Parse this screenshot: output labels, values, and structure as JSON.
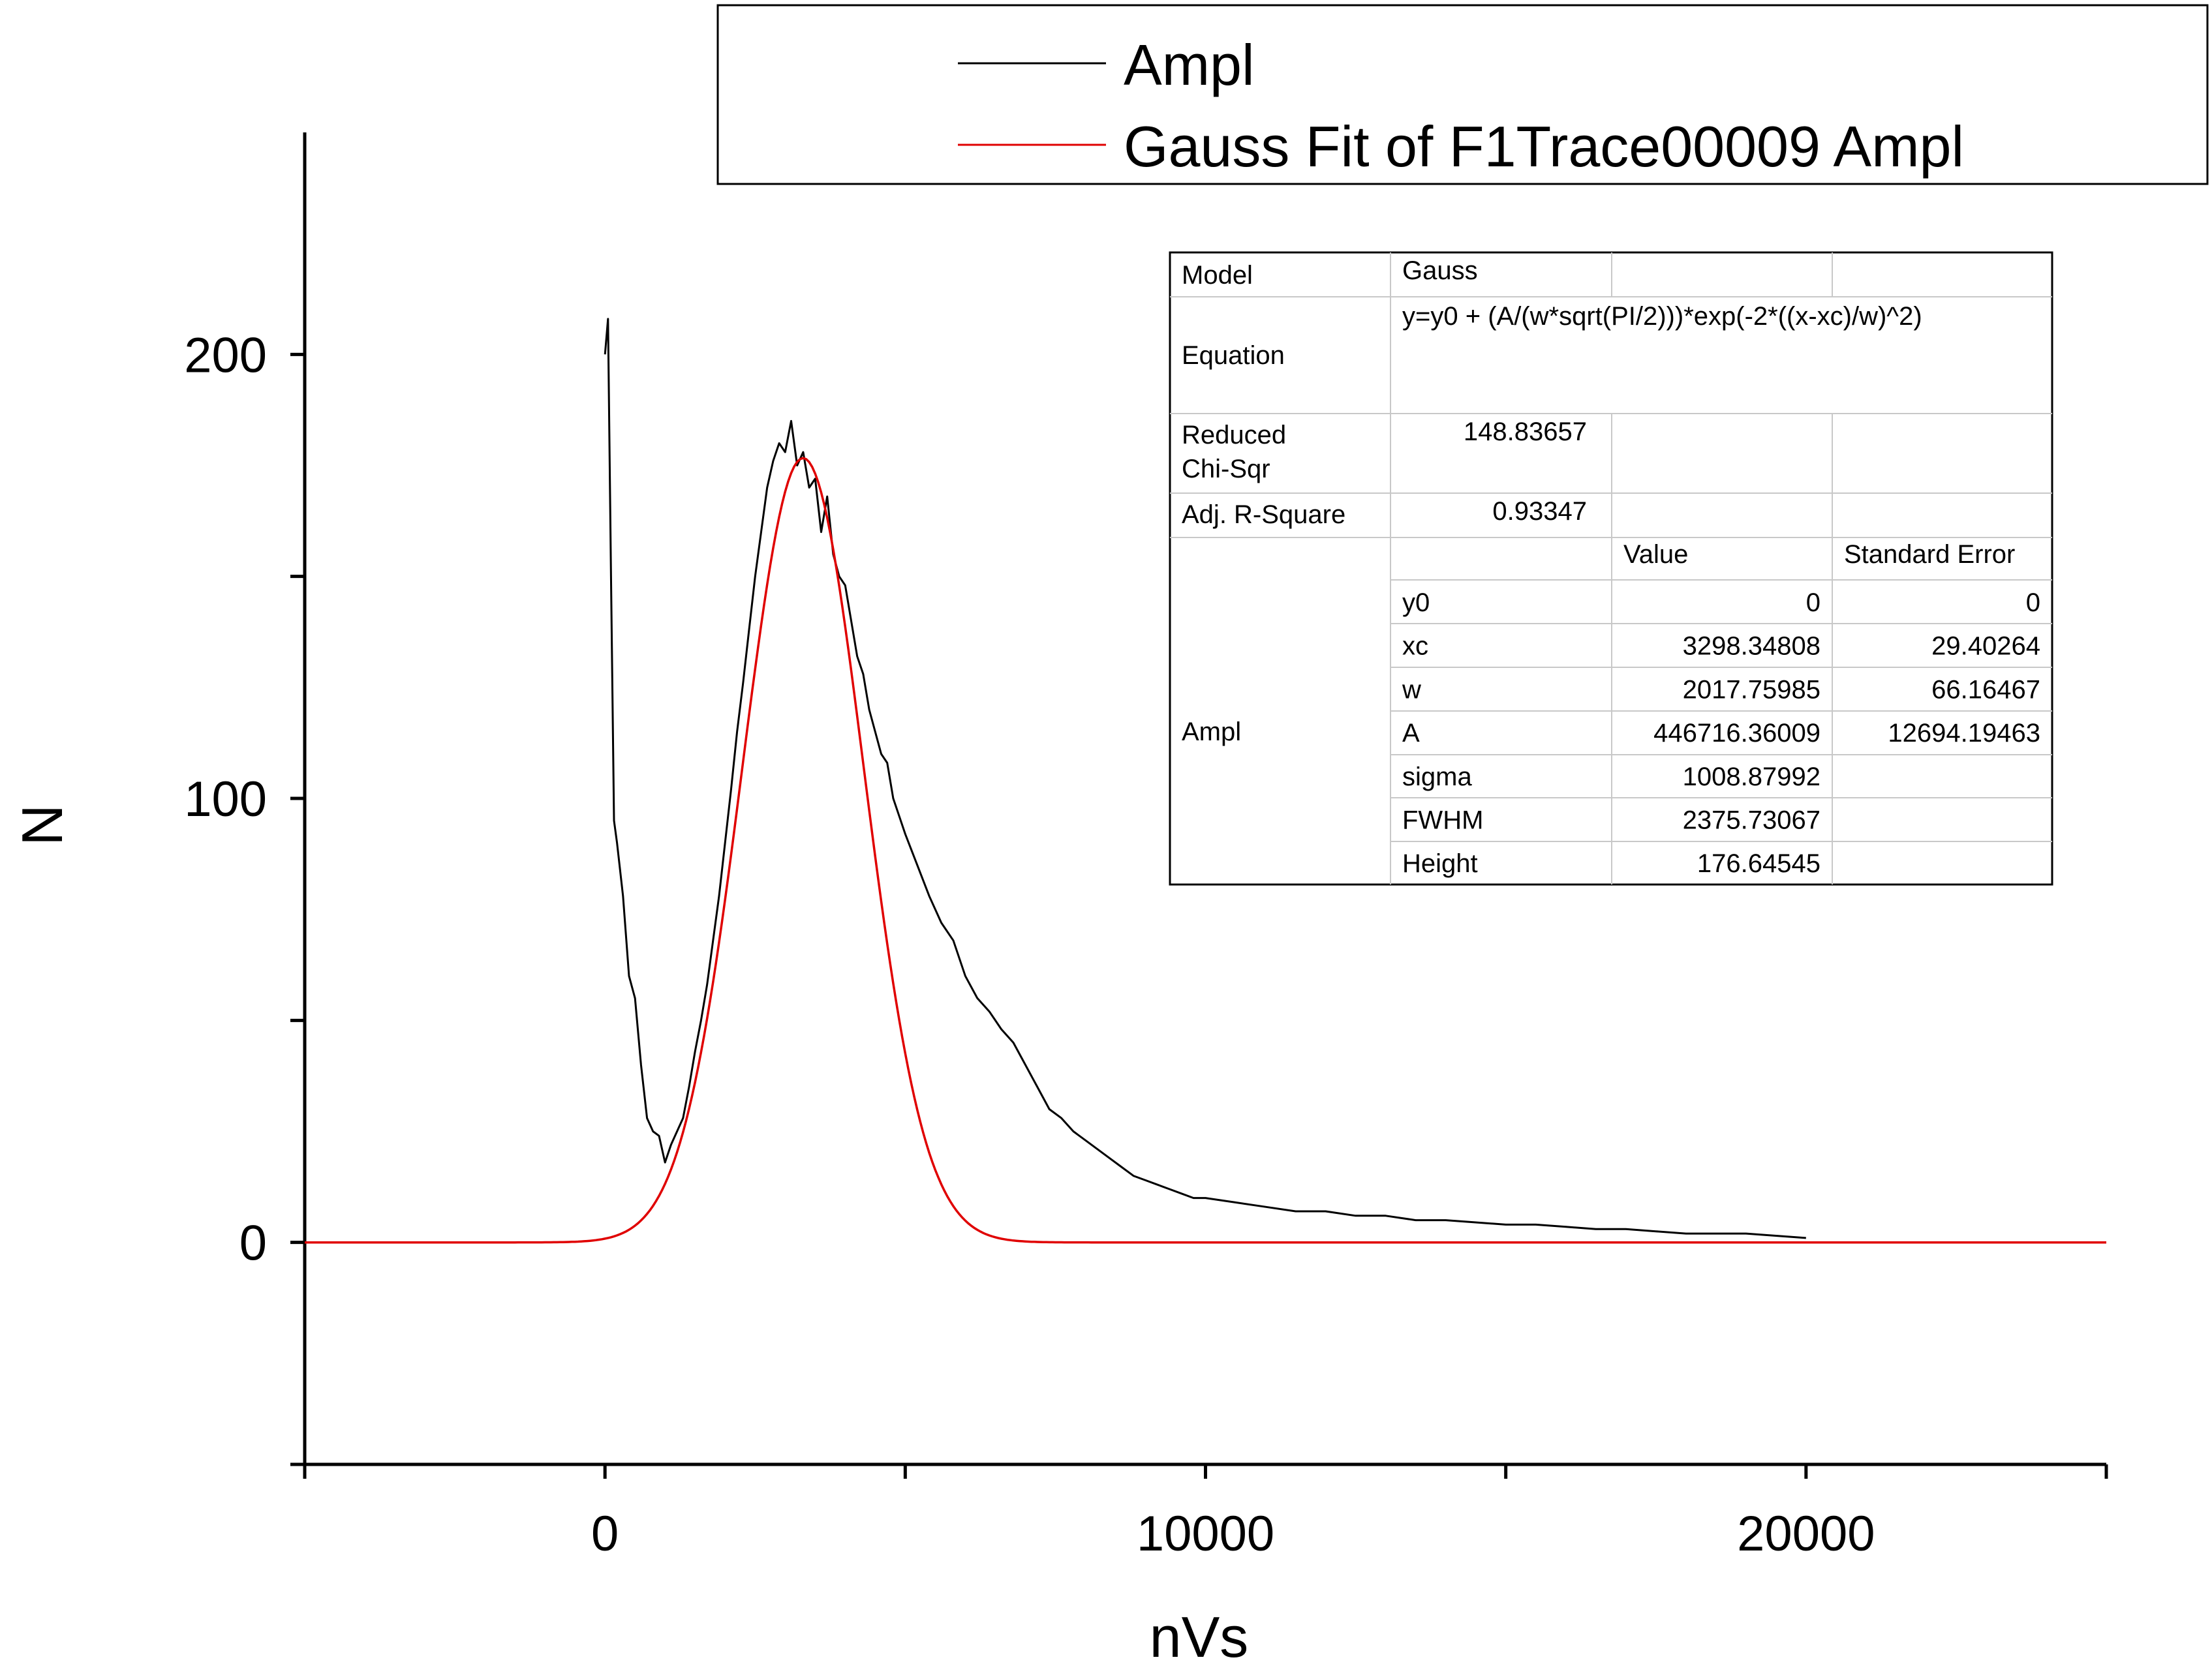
{
  "chart_data": {
    "type": "line",
    "xlabel": "nVs",
    "ylabel": "N",
    "xlim": [
      -5000,
      25000
    ],
    "ylim": [
      -50,
      250
    ],
    "x_ticks": [
      0,
      10000,
      20000
    ],
    "x_tick_labels": [
      "0",
      "10000",
      "20000"
    ],
    "x_minor_ticks": [
      -5000,
      5000,
      15000,
      25000
    ],
    "y_ticks": [
      0,
      100,
      200
    ],
    "y_tick_labels": [
      "0",
      "100",
      "200"
    ],
    "y_minor_ticks": [
      -50,
      50,
      150
    ],
    "grid": false,
    "legend": {
      "placement": "top-right",
      "entries": [
        {
          "label": "Ampl",
          "color": "#000000"
        },
        {
          "label": "Gauss Fit of F1Trace00009 Ampl",
          "color": "#e00000"
        }
      ]
    },
    "series": [
      {
        "name": "Ampl",
        "color": "#000000",
        "points": [
          [
            0,
            200
          ],
          [
            50,
            208
          ],
          [
            100,
            150
          ],
          [
            150,
            95
          ],
          [
            200,
            90
          ],
          [
            300,
            78
          ],
          [
            400,
            60
          ],
          [
            500,
            55
          ],
          [
            600,
            40
          ],
          [
            700,
            28
          ],
          [
            800,
            25
          ],
          [
            900,
            24
          ],
          [
            1000,
            18
          ],
          [
            1100,
            22
          ],
          [
            1200,
            25
          ],
          [
            1300,
            28
          ],
          [
            1400,
            35
          ],
          [
            1500,
            43
          ],
          [
            1600,
            50
          ],
          [
            1700,
            58
          ],
          [
            1800,
            68
          ],
          [
            1900,
            78
          ],
          [
            2000,
            90
          ],
          [
            2100,
            102
          ],
          [
            2200,
            115
          ],
          [
            2300,
            126
          ],
          [
            2400,
            138
          ],
          [
            2500,
            150
          ],
          [
            2600,
            160
          ],
          [
            2700,
            170
          ],
          [
            2800,
            176
          ],
          [
            2900,
            180
          ],
          [
            3000,
            178
          ],
          [
            3100,
            185
          ],
          [
            3200,
            175
          ],
          [
            3300,
            178
          ],
          [
            3400,
            170
          ],
          [
            3500,
            172
          ],
          [
            3600,
            160
          ],
          [
            3700,
            168
          ],
          [
            3800,
            155
          ],
          [
            3900,
            150
          ],
          [
            4000,
            148
          ],
          [
            4100,
            140
          ],
          [
            4200,
            132
          ],
          [
            4300,
            128
          ],
          [
            4400,
            120
          ],
          [
            4500,
            115
          ],
          [
            4600,
            110
          ],
          [
            4700,
            108
          ],
          [
            4800,
            100
          ],
          [
            4900,
            96
          ],
          [
            5000,
            92
          ],
          [
            5200,
            85
          ],
          [
            5400,
            78
          ],
          [
            5600,
            72
          ],
          [
            5800,
            68
          ],
          [
            6000,
            60
          ],
          [
            6200,
            55
          ],
          [
            6400,
            52
          ],
          [
            6600,
            48
          ],
          [
            6800,
            45
          ],
          [
            7000,
            40
          ],
          [
            7200,
            35
          ],
          [
            7400,
            30
          ],
          [
            7600,
            28
          ],
          [
            7800,
            25
          ],
          [
            8000,
            23
          ],
          [
            8200,
            21
          ],
          [
            8400,
            19
          ],
          [
            8600,
            17
          ],
          [
            8800,
            15
          ],
          [
            9000,
            14
          ],
          [
            9200,
            13
          ],
          [
            9400,
            12
          ],
          [
            9600,
            11
          ],
          [
            9800,
            10
          ],
          [
            10000,
            10
          ],
          [
            10500,
            9
          ],
          [
            11000,
            8
          ],
          [
            11500,
            7
          ],
          [
            12000,
            7
          ],
          [
            12500,
            6
          ],
          [
            13000,
            6
          ],
          [
            13500,
            5
          ],
          [
            14000,
            5
          ],
          [
            14500,
            4.5
          ],
          [
            15000,
            4
          ],
          [
            15500,
            4
          ],
          [
            16000,
            3.5
          ],
          [
            16500,
            3
          ],
          [
            17000,
            3
          ],
          [
            17500,
            2.5
          ],
          [
            18000,
            2
          ],
          [
            18500,
            2
          ],
          [
            19000,
            2
          ],
          [
            19500,
            1.5
          ],
          [
            20000,
            1
          ]
        ]
      },
      {
        "name": "Gauss Fit of F1Trace00009 Ampl",
        "color": "#e00000",
        "model": {
          "y0": 0,
          "xc": 3298.34808,
          "w": 2017.75985,
          "A": 446716.36009
        },
        "x_range": [
          -5000,
          25000
        ]
      }
    ]
  },
  "results_table": {
    "model_label": "Model",
    "model_value": "Gauss",
    "equation_label": "Equation",
    "equation_value": "y=y0 + (A/(w*sqrt(PI/2)))*exp(-2*((x-xc)/w)^2)",
    "chisq_label_1": "Reduced",
    "chisq_label_2": "Chi-Sqr",
    "chisq_value": "148.83657",
    "r2_label": "Adj. R-Square",
    "r2_value": "0.93347",
    "col_value": "Value",
    "col_error": "Standard Error",
    "group_label": "Ampl",
    "rows": [
      {
        "param": "y0",
        "value": "0",
        "error": "0"
      },
      {
        "param": "xc",
        "value": "3298.34808",
        "error": "29.40264"
      },
      {
        "param": "w",
        "value": "2017.75985",
        "error": "66.16467"
      },
      {
        "param": "A",
        "value": "446716.36009",
        "error": "12694.19463"
      },
      {
        "param": "sigma",
        "value": "1008.87992",
        "error": ""
      },
      {
        "param": "FWHM",
        "value": "2375.73067",
        "error": ""
      },
      {
        "param": "Height",
        "value": "176.64545",
        "error": ""
      }
    ]
  }
}
